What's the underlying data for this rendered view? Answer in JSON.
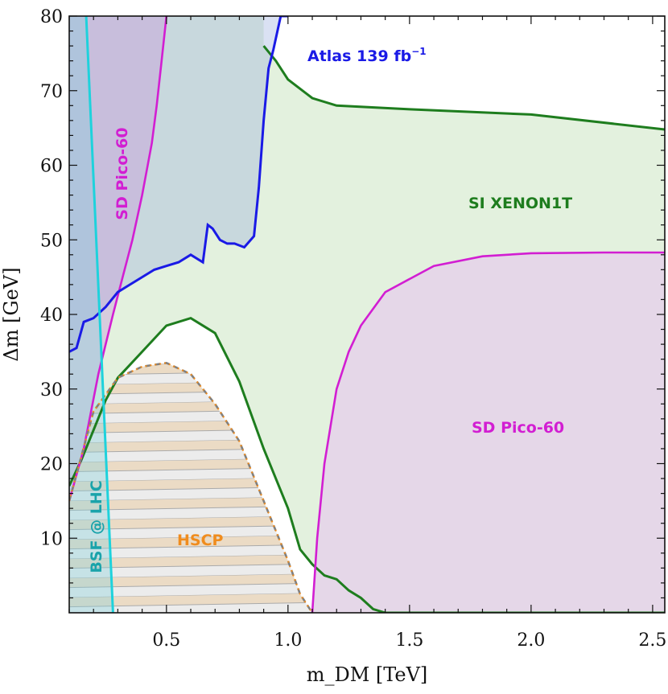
{
  "chart_data": {
    "type": "area",
    "title": "",
    "xlabel": "m_DM [TeV]",
    "ylabel": "Δm [GeV]",
    "xlim": [
      0.1,
      2.55
    ],
    "ylim": [
      0,
      80
    ],
    "x_ticks": [
      "0.5",
      "1.0",
      "1.5",
      "2.0",
      "2.5"
    ],
    "y_ticks": [
      "10",
      "20",
      "30",
      "40",
      "50",
      "60",
      "70",
      "80"
    ],
    "grid": false,
    "colors": {
      "atlas": "#1a1ae6",
      "xenon": "#1e7d1e",
      "pico": "#d21ed2",
      "bsf": "#1ed2dc",
      "hscp": "#f08c1e",
      "hscp_dashed": "#808080"
    },
    "series": [
      {
        "name": "Atlas 139 fb",
        "name_sup": "−1",
        "kind": "exclusion-boundary",
        "x": [
          0.1,
          0.13,
          0.16,
          0.2,
          0.25,
          0.3,
          0.35,
          0.4,
          0.45,
          0.5,
          0.55,
          0.6,
          0.65,
          0.67,
          0.69,
          0.72,
          0.75,
          0.78,
          0.82,
          0.86,
          0.88,
          0.9,
          0.92,
          0.94,
          0.97,
          0.98,
          1.0
        ],
        "y": [
          35,
          35.5,
          39,
          39.5,
          41,
          43,
          44,
          45,
          46,
          46.5,
          47,
          48,
          47,
          52,
          51.5,
          50,
          49.5,
          49.5,
          49,
          50.5,
          57,
          66,
          73,
          75.5,
          80,
          80,
          80
        ]
      },
      {
        "name": "SI XENON1T",
        "kind": "exclusion-boundary-upper",
        "x": [
          0.9,
          0.95,
          1.0,
          1.1,
          1.2,
          1.5,
          2.0,
          2.55
        ],
        "y": [
          76,
          74,
          71.5,
          69,
          68,
          67.5,
          66.8,
          64.8
        ]
      },
      {
        "name": "SI XENON1T",
        "kind": "exclusion-boundary-lower",
        "x": [
          0.1,
          0.15,
          0.2,
          0.25,
          0.3,
          0.4,
          0.5,
          0.6,
          0.7,
          0.8,
          0.9,
          1.0,
          1.05,
          1.1,
          1.15,
          1.2,
          1.25,
          1.3,
          1.35,
          1.4,
          2.55
        ],
        "y": [
          17,
          20.5,
          24.5,
          28.5,
          31.5,
          35,
          38.5,
          39.5,
          37.5,
          31,
          22,
          14,
          8.5,
          6.5,
          5,
          4.5,
          3,
          2,
          0.5,
          0,
          0
        ]
      },
      {
        "name": "SD Pico-60",
        "kind": "exclusion-boundary-left",
        "x": [
          0.1,
          0.16,
          0.22,
          0.28,
          0.32,
          0.36,
          0.4,
          0.44,
          0.46,
          0.48,
          0.5
        ],
        "y": [
          15,
          22,
          32,
          40,
          45,
          50,
          56,
          63,
          68,
          74,
          80
        ]
      },
      {
        "name": "SD Pico-60",
        "kind": "exclusion-boundary-right",
        "x": [
          1.1,
          1.12,
          1.15,
          1.2,
          1.25,
          1.3,
          1.4,
          1.6,
          1.8,
          2.0,
          2.3,
          2.55
        ],
        "y": [
          0,
          10,
          20,
          30,
          35,
          38.5,
          43,
          46.5,
          47.8,
          48.2,
          48.3,
          48.3
        ]
      },
      {
        "name": "BSF @ LHC",
        "kind": "exclusion-boundary",
        "x": [
          0.17,
          0.28
        ],
        "y": [
          80,
          0
        ]
      },
      {
        "name": "HSCP",
        "kind": "exclusion-boundary-hatched",
        "x": [
          0.1,
          0.2,
          0.3,
          0.4,
          0.5,
          0.6,
          0.7,
          0.8,
          0.9,
          1.0,
          1.05,
          1.1
        ],
        "y": [
          15,
          27,
          31.5,
          33,
          33.5,
          32,
          28,
          23,
          15,
          7,
          2.5,
          0
        ]
      }
    ],
    "annotations": [
      {
        "text": "Atlas 139 fb",
        "sup": "−1"
      },
      {
        "text": "SI XENON1T"
      },
      {
        "text": "SD Pico-60",
        "region": "left"
      },
      {
        "text": "SD Pico-60",
        "region": "right"
      },
      {
        "text": "BSF @ LHC"
      },
      {
        "text": "HSCP"
      }
    ]
  }
}
